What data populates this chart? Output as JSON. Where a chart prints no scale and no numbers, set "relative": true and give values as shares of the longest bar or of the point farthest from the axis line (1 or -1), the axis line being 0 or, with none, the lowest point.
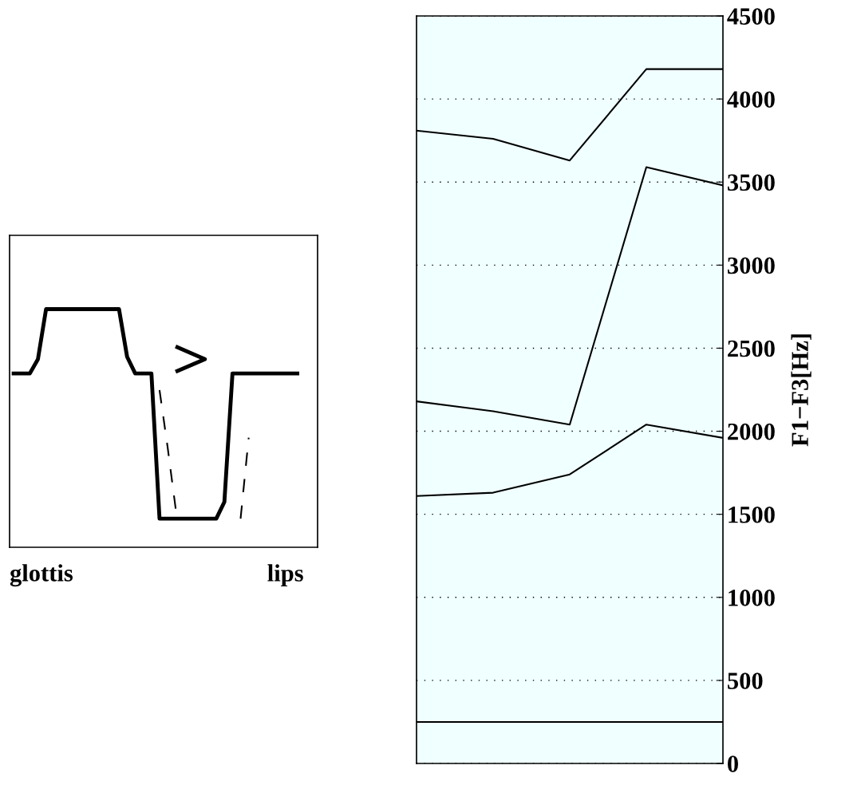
{
  "chart_data": [
    {
      "type": "line",
      "relative": true,
      "categories": [
        null,
        null,
        null,
        null,
        null,
        null,
        null,
        null,
        null,
        null,
        null,
        null,
        null,
        null,
        null,
        null,
        null,
        null,
        null,
        null,
        null,
        null,
        null,
        null,
        null,
        null,
        null,
        null,
        null,
        null,
        null,
        null,
        null,
        null,
        null,
        null,
        null,
        null
      ],
      "annotations": [
        "glottis",
        "lips"
      ],
      "tick_labels": false,
      "marker": "none",
      "series": [
        {
          "color": "#000000",
          "line_style": "solid",
          "values": [
            0.73,
            0.73,
            0.73,
            0.79,
            1,
            1,
            1,
            1,
            1,
            1,
            1,
            1,
            1,
            1,
            0.8,
            0.73,
            0.73,
            0.73,
            0.12,
            0.12,
            0.12,
            0.12,
            0.12,
            0.12,
            0.12,
            0.12,
            0.19,
            0.73,
            0.73,
            0.73,
            0.73,
            0.73,
            0.73,
            0.73,
            0.73,
            0.73,
            null,
            null
          ]
        },
        {
          "color": "#000000",
          "line_style": "dashed",
          "values": [
            null,
            null,
            null,
            null,
            null,
            null,
            null,
            null,
            null,
            null,
            null,
            null,
            null,
            null,
            null,
            null,
            null,
            null,
            0.66,
            0.42,
            0.16,
            null,
            null,
            null,
            null,
            null,
            null,
            null,
            0.12,
            0.46,
            null,
            null,
            null,
            null,
            null,
            null,
            null,
            null
          ]
        }
      ]
    },
    {
      "type": "line",
      "categories": [
        null,
        null,
        null,
        null,
        null
      ],
      "ylabel": "F1−F3[Hz]",
      "ylim": [
        0,
        4500
      ],
      "yticks": [
        0,
        500,
        1000,
        1500,
        2000,
        2500,
        3000,
        3500,
        4000,
        4500
      ],
      "grid": "y",
      "line_style": "solid",
      "marker": "none",
      "tick_labels": "y",
      "series": [
        {
          "color": "#000000",
          "values": [
            250,
            250,
            250,
            250,
            250
          ]
        },
        {
          "color": "#000000",
          "values": [
            1610,
            1630,
            1740,
            2040,
            1960
          ]
        },
        {
          "color": "#000000",
          "values": [
            2180,
            2120,
            2040,
            3590,
            3480
          ]
        },
        {
          "color": "#000000",
          "values": [
            3810,
            3760,
            3630,
            4180,
            4180
          ]
        }
      ]
    }
  ]
}
